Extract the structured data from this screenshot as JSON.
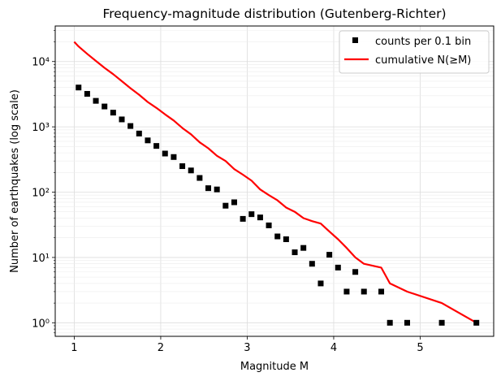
{
  "chart_data": {
    "type": "scatter",
    "title": "Frequency-magnitude distribution (Gutenberg-Richter)",
    "xlabel": "Magnitude M",
    "ylabel": "Number of earthquakes (log scale)",
    "xlim": [
      0.78,
      5.85
    ],
    "ylim": [
      0.62,
      35000
    ],
    "yscale": "log",
    "grid": true,
    "legend_position": "top-right",
    "x_ticks": [
      1,
      2,
      3,
      4,
      5
    ],
    "x_tick_labels": [
      "1",
      "2",
      "3",
      "4",
      "5"
    ],
    "y_ticks": [
      1,
      10,
      100,
      1000,
      10000
    ],
    "y_tick_labels": [
      "10⁰",
      "10¹",
      "10²",
      "10³",
      "10⁴"
    ],
    "series": [
      {
        "name": "counts per 0.1 bin",
        "kind": "scatter",
        "marker": "square",
        "color": "#000000",
        "x": [
          1.05,
          1.15,
          1.25,
          1.35,
          1.45,
          1.55,
          1.65,
          1.75,
          1.85,
          1.95,
          2.05,
          2.15,
          2.25,
          2.35,
          2.45,
          2.55,
          2.65,
          2.75,
          2.85,
          2.95,
          3.05,
          3.15,
          3.25,
          3.35,
          3.45,
          3.55,
          3.65,
          3.75,
          3.85,
          3.95,
          4.05,
          4.15,
          4.25,
          4.35,
          4.55,
          4.65,
          4.85,
          5.25,
          5.65
        ],
        "y": [
          4000,
          3200,
          2500,
          2050,
          1650,
          1300,
          1030,
          790,
          620,
          510,
          390,
          345,
          250,
          215,
          165,
          115,
          110,
          62,
          70,
          39,
          46,
          41,
          31,
          21,
          19,
          12,
          14,
          8,
          4,
          11,
          7,
          3,
          6,
          3,
          3,
          1,
          1,
          1,
          1
        ]
      },
      {
        "name": "cumulative N(≥M)",
        "kind": "line",
        "color": "#ff0000",
        "x": [
          1.0,
          1.05,
          1.15,
          1.25,
          1.35,
          1.45,
          1.55,
          1.65,
          1.75,
          1.85,
          1.95,
          2.05,
          2.15,
          2.25,
          2.35,
          2.45,
          2.55,
          2.65,
          2.75,
          2.85,
          2.95,
          3.05,
          3.15,
          3.25,
          3.35,
          3.45,
          3.55,
          3.65,
          3.75,
          3.85,
          3.95,
          4.05,
          4.15,
          4.25,
          4.35,
          4.55,
          4.65,
          4.85,
          5.25,
          5.65
        ],
        "y": [
          20000,
          17000,
          13100,
          10200,
          8000,
          6400,
          5000,
          3900,
          3100,
          2400,
          1950,
          1550,
          1250,
          960,
          770,
          580,
          470,
          360,
          300,
          225,
          185,
          150,
          110,
          90,
          75,
          58,
          50,
          40,
          36,
          33,
          25,
          19,
          14,
          10,
          8,
          7,
          4,
          3,
          2,
          1
        ]
      }
    ]
  }
}
